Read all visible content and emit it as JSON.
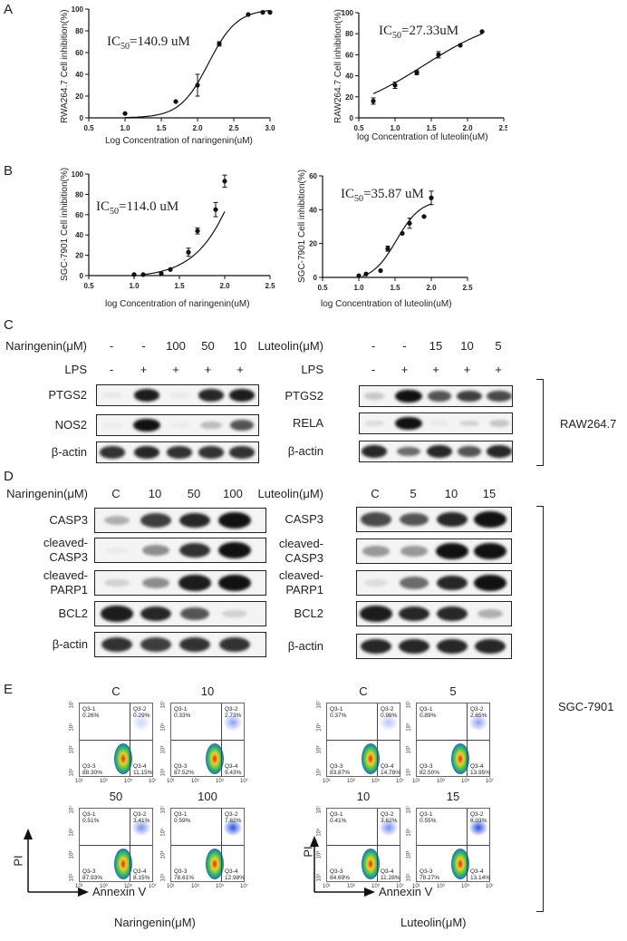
{
  "panels": {
    "A": "A",
    "B": "B",
    "C": "C",
    "D": "D",
    "E": "E"
  },
  "chart_data": [
    {
      "id": "A-left",
      "type": "scatter",
      "fit": "sigmoid",
      "ic50": "IC50=140.9 uM",
      "ic50_main": "IC",
      "ic50_sub": "50",
      "ic50_rest": "=140.9 uM",
      "xlabel": "Log Concentration of naringenin(uM)",
      "ylabel": "RWA264.7 Cell inhibition(%)",
      "xlim": [
        0.5,
        3.0
      ],
      "ylim": [
        0,
        100
      ],
      "xticks": [
        "0.5",
        "1.0",
        "1.5",
        "2.0",
        "2.5",
        "3.0"
      ],
      "yticks": [
        "0",
        "20",
        "40",
        "60",
        "80",
        "100"
      ],
      "x": [
        1.0,
        1.7,
        2.0,
        2.3,
        2.7,
        2.9,
        3.0
      ],
      "y": [
        4,
        15,
        30,
        68,
        95,
        97,
        97
      ],
      "err": [
        0,
        0,
        10,
        2,
        0,
        0,
        0
      ]
    },
    {
      "id": "A-right",
      "type": "scatter",
      "fit": "sigmoid",
      "ic50": "IC50=27.33uM",
      "ic50_main": "IC",
      "ic50_sub": "50",
      "ic50_rest": "=27.33uM",
      "xlabel": "log Concentration of luteolin(uM)",
      "ylabel": "RAW264.7 Cell inhibition(%)",
      "xlim": [
        0.5,
        2.5
      ],
      "ylim": [
        0,
        100
      ],
      "xticks": [
        "0.5",
        "1.0",
        "1.5",
        "2.0",
        "2.5"
      ],
      "yticks": [
        "0",
        "20",
        "40",
        "60",
        "80",
        "100"
      ],
      "x": [
        0.7,
        1.0,
        1.3,
        1.6,
        1.9,
        2.2
      ],
      "y": [
        16,
        31,
        43,
        60,
        69,
        82
      ],
      "err": [
        3,
        3,
        2,
        3,
        0,
        0
      ]
    },
    {
      "id": "B-left",
      "type": "scatter",
      "fit": "sigmoid",
      "ic50": "IC50=114.0 uM",
      "ic50_main": "IC",
      "ic50_sub": "50",
      "ic50_rest": "=114.0 uM",
      "xlabel": "log Concentration of naringenin(uM)",
      "ylabel": "SGC-7901 Cell inhibition(%)",
      "xlim": [
        0.5,
        2.5
      ],
      "ylim": [
        0,
        100
      ],
      "xticks": [
        "0.5",
        "1.0",
        "1.5",
        "2.0",
        "2.5"
      ],
      "yticks": [
        "0",
        "20",
        "40",
        "60",
        "80",
        "100"
      ],
      "x": [
        1.0,
        1.1,
        1.3,
        1.4,
        1.6,
        1.7,
        1.9,
        2.0
      ],
      "y": [
        1,
        1,
        2,
        6,
        23,
        44,
        65,
        93
      ],
      "err": [
        0,
        0,
        0,
        0,
        4,
        3,
        7,
        6
      ]
    },
    {
      "id": "B-right",
      "type": "scatter",
      "fit": "sigmoid",
      "ic50": "IC50=35.87 uM",
      "ic50_main": "IC",
      "ic50_sub": "50",
      "ic50_rest": "=35.87 uM",
      "xlabel": "log Concentration of luteolin(uM)",
      "ylabel": "SGC-7901 Cell inhibition(%)",
      "xlim": [
        0.5,
        2.5
      ],
      "ylim": [
        0,
        60
      ],
      "xticks": [
        "0.5",
        "1.0",
        "1.5",
        "2.0",
        "2.5"
      ],
      "yticks": [
        "0",
        "20",
        "40",
        "60"
      ],
      "x": [
        1.0,
        1.1,
        1.3,
        1.4,
        1.6,
        1.7,
        1.9,
        2.0
      ],
      "y": [
        1,
        2,
        4,
        17,
        26,
        32,
        36,
        47
      ],
      "err": [
        0,
        0,
        0,
        1.5,
        0,
        3,
        0,
        4
      ]
    }
  ],
  "panelC": {
    "left": {
      "treatment_label": "Naringenin(μM)",
      "treatment_values": [
        "-",
        "-",
        "100",
        "50",
        "10"
      ],
      "lps_label": "LPS",
      "lps_values": [
        "-",
        "+",
        "+",
        "+",
        "+"
      ],
      "rows": [
        {
          "label": "PTGS2",
          "intensities": [
            0.05,
            0.95,
            0.05,
            0.9,
            0.95
          ]
        },
        {
          "label": "NOS2",
          "intensities": [
            0.02,
            1.0,
            0.02,
            0.25,
            0.7
          ]
        },
        {
          "label": "β-actin",
          "intensities": [
            0.85,
            0.9,
            0.85,
            0.85,
            0.85
          ]
        }
      ]
    },
    "right": {
      "treatment_label": "Luteolin(μM)",
      "treatment_values": [
        "-",
        "-",
        "15",
        "10",
        "5"
      ],
      "lps_label": "LPS",
      "lps_values": [
        "-",
        "+",
        "+",
        "+",
        "+"
      ],
      "rows": [
        {
          "label": "PTGS2",
          "intensities": [
            0.2,
            1.0,
            0.7,
            0.8,
            0.75
          ]
        },
        {
          "label": "RELA",
          "intensities": [
            0.1,
            1.0,
            0.05,
            0.15,
            0.2
          ]
        },
        {
          "label": "β-actin",
          "intensities": [
            0.9,
            0.6,
            0.9,
            0.7,
            0.9
          ]
        }
      ]
    },
    "cell_line": "RAW264.7"
  },
  "panelD": {
    "left": {
      "treatment_label": "Naringenin(μM)",
      "treatment_values": [
        "C",
        "10",
        "50",
        "100"
      ],
      "rows": [
        {
          "label": "CASP3",
          "label2": "",
          "intensities": [
            0.3,
            0.8,
            0.9,
            1.0
          ]
        },
        {
          "label": "cleaved-",
          "label2": "CASP3",
          "intensities": [
            0.0,
            0.45,
            0.85,
            1.0
          ]
        },
        {
          "label": "cleaved-",
          "label2": "PARP1",
          "intensities": [
            0.15,
            0.45,
            0.95,
            1.0
          ]
        },
        {
          "label": "BCL2",
          "label2": "",
          "intensities": [
            0.95,
            0.9,
            0.7,
            0.15
          ]
        },
        {
          "label": "β-actin",
          "label2": "",
          "intensities": [
            0.85,
            0.8,
            0.85,
            0.85
          ]
        }
      ]
    },
    "right": {
      "treatment_label": "Luteolin(μM)",
      "treatment_values": [
        "C",
        "5",
        "10",
        "15"
      ],
      "rows": [
        {
          "label": "CASP3",
          "label2": "",
          "intensities": [
            0.75,
            0.7,
            0.9,
            1.0
          ]
        },
        {
          "label": "cleaved-",
          "label2": "CASP3",
          "intensities": [
            0.4,
            0.4,
            1.0,
            1.0
          ]
        },
        {
          "label": "cleaved-",
          "label2": "PARP1",
          "intensities": [
            0.1,
            0.6,
            0.9,
            1.0
          ]
        },
        {
          "label": "BCL2",
          "label2": "",
          "intensities": [
            0.95,
            0.9,
            0.9,
            0.3
          ]
        },
        {
          "label": "β-actin",
          "label2": "",
          "intensities": [
            0.9,
            0.9,
            0.9,
            0.9
          ]
        }
      ]
    },
    "cell_line": "SGC-7901"
  },
  "panelE": {
    "y_axis_label": "PI",
    "x_axis_label": "Annexin V",
    "x_ticks": [
      "10¹",
      "10³",
      "10⁵",
      "10⁷"
    ],
    "y_ticks": [
      "10¹",
      "10³",
      "10⁵",
      "10⁷"
    ],
    "left_group_label": "Naringenin(μM)",
    "right_group_label": "Luteolin(μM)",
    "plots": [
      {
        "title": "C",
        "q1": "Q3-1\n0.26%",
        "q2": "Q3-2\n0.29%",
        "q3": "Q3-3\n88.30%",
        "q4": "Q3-4\n11.15%"
      },
      {
        "title": "10",
        "q1": "Q3-1\n0.33%",
        "q2": "Q3-2\n2.73%",
        "q3": "Q3-3\n87.52%",
        "q4": "Q3-4\n9.43%"
      },
      {
        "title": "50",
        "q1": "Q3-1\n0.51%",
        "q2": "Q3-2\n3.41%",
        "q3": "Q3-3\n87.93%",
        "q4": "Q3-4\n8.15%"
      },
      {
        "title": "100",
        "q1": "Q3-1\n0.59%",
        "q2": "Q3-2\n7.82%",
        "q3": "Q3-3\n78.61%",
        "q4": "Q3-4\n12.98%"
      },
      {
        "title": "C",
        "q1": "Q3-1\n0.37%",
        "q2": "Q3-2\n0.98%",
        "q3": "Q3-3\n83.87%",
        "q4": "Q3-4\n14.78%"
      },
      {
        "title": "5",
        "q1": "Q3-1\n0.89%",
        "q2": "Q3-2\n2.65%",
        "q3": "Q3-3\n82.50%",
        "q4": "Q3-4\n13.95%"
      },
      {
        "title": "10",
        "q1": "Q3-1\n0.41%",
        "q2": "Q3-2\n3.62%",
        "q3": "Q3-3\n84.69%",
        "q4": "Q3-4\n11.28%"
      },
      {
        "title": "15",
        "q1": "Q3-1\n0.55%",
        "q2": "Q3-2\n8.03%",
        "q3": "Q3-3\n78.27%",
        "q4": "Q3-4\n13.14%"
      }
    ]
  }
}
